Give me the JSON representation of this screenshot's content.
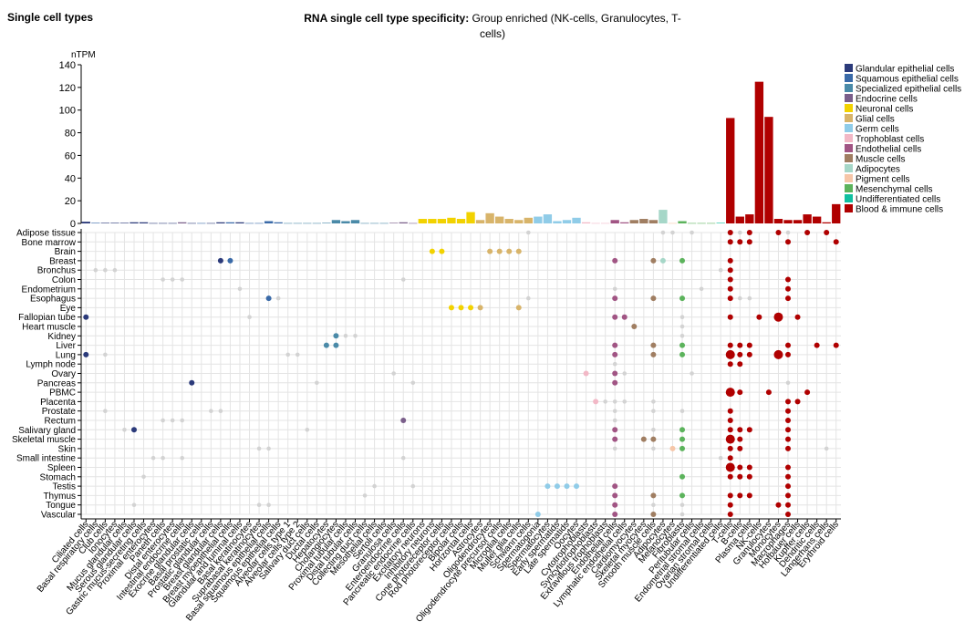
{
  "page": {
    "section_title": "Single cell types",
    "title_label": "RNA single cell type specificity:",
    "title_value": "Group enriched (NK-cells, Granulocytes, T-cells)"
  },
  "chart_data": {
    "type": "bar",
    "ylabel": "nTPM",
    "ylim": [
      0,
      140
    ],
    "yticks": [
      0,
      20,
      40,
      60,
      80,
      100,
      120,
      140
    ],
    "grid": true,
    "legend_position": "right",
    "groups": [
      {
        "name": "Glandular epithelial cells",
        "color": "#2b3a7a"
      },
      {
        "name": "Squamous epithelial cells",
        "color": "#3a6aa8"
      },
      {
        "name": "Specialized epithelial cells",
        "color": "#4a8aa8"
      },
      {
        "name": "Endocrine cells",
        "color": "#7a5e8a"
      },
      {
        "name": "Neuronal cells",
        "color": "#f2d200"
      },
      {
        "name": "Glial cells",
        "color": "#d8b46a"
      },
      {
        "name": "Germ cells",
        "color": "#90cce8"
      },
      {
        "name": "Trophoblast cells",
        "color": "#f2b8c6"
      },
      {
        "name": "Endothelial cells",
        "color": "#a15584"
      },
      {
        "name": "Muscle cells",
        "color": "#a07e62"
      },
      {
        "name": "Adipocytes",
        "color": "#a6d7c8"
      },
      {
        "name": "Pigment cells",
        "color": "#f6c6a8"
      },
      {
        "name": "Mesenchymal cells",
        "color": "#5cb35c"
      },
      {
        "name": "Undifferentiated cells",
        "color": "#10c0a0"
      },
      {
        "name": "Blood & immune cells",
        "color": "#b00000"
      }
    ],
    "categories": [
      "Ciliated cells",
      "Basal respiratory cells",
      "Club cells",
      "Ionocytes",
      "Mucus glandular cells",
      "Serous glandular cells",
      "Gastric mucus-secreting cells",
      "Proximal enterocytes",
      "Paneth cells",
      "Distal enterocytes",
      "Intestinal endocrine cells",
      "Exocrine glandular cells",
      "Basal prostatic cells",
      "Prostatic glandular cells",
      "Breast glandular cells",
      "Breast myoepithelial cells",
      "Glandular and luminal cells",
      "Basal keratinocytes",
      "Suprabasal keratinocytes",
      "Basal squamous epithelial cells",
      "Squamous epithelial cells",
      "Alveolar cells type 1",
      "Alveolar cells type 2",
      "Salivary duct cells",
      "Ductal cells",
      "Hepatocytes",
      "Cholangiocytes",
      "Proximal tubular cells",
      "Distal tubular cells",
      "Collecting duct cells",
      "Mesothelial cells",
      "Sertoli cells",
      "Granulosa cells",
      "Enteroendocrine cells",
      "Pancreatic endocrine cells",
      "Excitatory neurons",
      "Inhibitory neurons",
      "Cone photoreceptor cells",
      "Rod photoreceptor cells",
      "Bipolar cells",
      "Horizontal cells",
      "Astrocytes",
      "Oligodendrocytes",
      "Oligodendrocyte precursor cells",
      "Microglial cells",
      "Muller glia cells",
      "Schwann cells",
      "Spermatogonia",
      "Spermatocytes",
      "Early spermatids",
      "Late spermatids",
      "Oocytes",
      "Cytotrophoblasts",
      "Syncytiotrophoblasts",
      "Extravillous trophoblasts",
      "Endothelial cells",
      "Lymphatic endothelial cells",
      "Cardiomyocytes",
      "Skeletal myocytes",
      "Smooth muscle cells",
      "Adipocytes",
      "Melanocytes",
      "Fibroblasts",
      "Peritubular cells",
      "Endometrial stromal cells",
      "Ovarian stromal cells",
      "Undifferentiated cells",
      "T-cells",
      "B-cells",
      "Plasma cells",
      "NK-cells",
      "Granulocytes",
      "Monocytes",
      "Macrophages",
      "Hofbauer cells",
      "Kupffer cells",
      "Dendritic cells",
      "Langerhans cells",
      "Erythroid cells"
    ],
    "category_groups": [
      0,
      1,
      0,
      0,
      0,
      0,
      0,
      0,
      0,
      0,
      3,
      0,
      1,
      0,
      0,
      1,
      0,
      1,
      1,
      1,
      1,
      2,
      2,
      2,
      2,
      2,
      2,
      2,
      2,
      2,
      2,
      2,
      3,
      3,
      3,
      4,
      4,
      4,
      4,
      4,
      4,
      5,
      5,
      5,
      5,
      5,
      5,
      6,
      6,
      6,
      6,
      6,
      7,
      7,
      7,
      8,
      8,
      9,
      9,
      9,
      10,
      11,
      12,
      12,
      12,
      12,
      13,
      14,
      14,
      14,
      14,
      14,
      14,
      14,
      14,
      14,
      14,
      14,
      14
    ],
    "values": [
      1.5,
      0.5,
      0.5,
      0.5,
      0.5,
      1,
      1,
      0.3,
      0.3,
      0.3,
      1,
      0.3,
      0.3,
      0.3,
      1,
      1,
      1,
      0.3,
      0.3,
      2,
      1,
      0.3,
      0.3,
      0.3,
      0.3,
      0.5,
      3,
      2,
      3,
      0.3,
      0.3,
      0.3,
      0.5,
      1,
      0.3,
      4,
      4,
      4,
      5,
      4,
      10,
      3,
      9,
      6,
      4,
      3,
      5,
      6,
      8,
      2,
      3,
      5,
      1,
      0.3,
      0.3,
      3,
      1,
      3,
      4,
      3,
      12,
      0.3,
      2,
      0.3,
      0.3,
      0.3,
      0.5,
      93,
      6,
      8,
      125,
      94,
      4,
      3,
      3,
      8,
      6,
      1,
      17
    ],
    "tissues": [
      "Adipose tissue",
      "Bone marrow",
      "Brain",
      "Breast",
      "Bronchus",
      "Colon",
      "Endometrium",
      "Esophagus",
      "Eye",
      "Fallopian tube",
      "Heart muscle",
      "Kidney",
      "Liver",
      "Lung",
      "Lymph node",
      "Ovary",
      "Pancreas",
      "PBMC",
      "Placenta",
      "Prostate",
      "Rectum",
      "Salivary gland",
      "Skeletal muscle",
      "Skin",
      "Small intestine",
      "Spleen",
      "Stomach",
      "Testis",
      "Thymus",
      "Tongue",
      "Vascular"
    ],
    "dots": [
      [
        0,
        46,
        1
      ],
      [
        0,
        60,
        1
      ],
      [
        0,
        61,
        1
      ],
      [
        0,
        63,
        1
      ],
      [
        0,
        67,
        2
      ],
      [
        0,
        68,
        1
      ],
      [
        0,
        69,
        2
      ],
      [
        0,
        72,
        2
      ],
      [
        0,
        73,
        1
      ],
      [
        0,
        75,
        2
      ],
      [
        0,
        77,
        2
      ],
      [
        1,
        67,
        4
      ],
      [
        1,
        68,
        2
      ],
      [
        1,
        69,
        2
      ],
      [
        1,
        73,
        2
      ],
      [
        1,
        78,
        2
      ],
      [
        2,
        36,
        2
      ],
      [
        2,
        37,
        2
      ],
      [
        2,
        42,
        2
      ],
      [
        2,
        43,
        2
      ],
      [
        2,
        44,
        2
      ],
      [
        2,
        45,
        2
      ],
      [
        3,
        14,
        2
      ],
      [
        3,
        15,
        2
      ],
      [
        3,
        55,
        2
      ],
      [
        3,
        59,
        2
      ],
      [
        3,
        60,
        2
      ],
      [
        3,
        62,
        2
      ],
      [
        3,
        67,
        2
      ],
      [
        4,
        1,
        1
      ],
      [
        4,
        2,
        1
      ],
      [
        4,
        3,
        1
      ],
      [
        4,
        66,
        1
      ],
      [
        4,
        67,
        2
      ],
      [
        5,
        8,
        1
      ],
      [
        5,
        9,
        1
      ],
      [
        5,
        10,
        1
      ],
      [
        5,
        33,
        1
      ],
      [
        5,
        67,
        2
      ],
      [
        5,
        73,
        2
      ],
      [
        6,
        16,
        1
      ],
      [
        6,
        55,
        1
      ],
      [
        6,
        64,
        1
      ],
      [
        6,
        67,
        2
      ],
      [
        6,
        73,
        2
      ],
      [
        7,
        19,
        2
      ],
      [
        7,
        20,
        1
      ],
      [
        7,
        46,
        1
      ],
      [
        7,
        55,
        2
      ],
      [
        7,
        59,
        2
      ],
      [
        7,
        62,
        2
      ],
      [
        7,
        67,
        2
      ],
      [
        7,
        68,
        1
      ],
      [
        7,
        69,
        1
      ],
      [
        7,
        73,
        2
      ],
      [
        8,
        38,
        2
      ],
      [
        8,
        39,
        2
      ],
      [
        8,
        40,
        2
      ],
      [
        8,
        41,
        2
      ],
      [
        8,
        45,
        2
      ],
      [
        9,
        0,
        2
      ],
      [
        9,
        17,
        1
      ],
      [
        9,
        55,
        2
      ],
      [
        9,
        56,
        2
      ],
      [
        9,
        62,
        1
      ],
      [
        9,
        67,
        2
      ],
      [
        9,
        70,
        2
      ],
      [
        9,
        72,
        3
      ],
      [
        9,
        74,
        2
      ],
      [
        10,
        57,
        2
      ],
      [
        10,
        62,
        1
      ],
      [
        11,
        26,
        2
      ],
      [
        11,
        27,
        1
      ],
      [
        11,
        28,
        1
      ],
      [
        11,
        62,
        1
      ],
      [
        12,
        25,
        2
      ],
      [
        12,
        26,
        2
      ],
      [
        12,
        55,
        2
      ],
      [
        12,
        59,
        2
      ],
      [
        12,
        62,
        2
      ],
      [
        12,
        67,
        4
      ],
      [
        12,
        68,
        2
      ],
      [
        12,
        69,
        2
      ],
      [
        12,
        73,
        2
      ],
      [
        12,
        76,
        2
      ],
      [
        12,
        78,
        2
      ],
      [
        13,
        0,
        2
      ],
      [
        13,
        2,
        1
      ],
      [
        13,
        21,
        1
      ],
      [
        13,
        22,
        1
      ],
      [
        13,
        55,
        2
      ],
      [
        13,
        59,
        2
      ],
      [
        13,
        62,
        2
      ],
      [
        13,
        67,
        3
      ],
      [
        13,
        68,
        2
      ],
      [
        13,
        69,
        2
      ],
      [
        13,
        72,
        3
      ],
      [
        13,
        73,
        2
      ],
      [
        14,
        55,
        1
      ],
      [
        14,
        67,
        2
      ],
      [
        14,
        68,
        2
      ],
      [
        15,
        32,
        1
      ],
      [
        15,
        52,
        2
      ],
      [
        15,
        55,
        2
      ],
      [
        15,
        56,
        1
      ],
      [
        15,
        63,
        1
      ],
      [
        16,
        11,
        2
      ],
      [
        16,
        24,
        1
      ],
      [
        16,
        34,
        1
      ],
      [
        16,
        55,
        2
      ],
      [
        16,
        73,
        1
      ],
      [
        17,
        67,
        3
      ],
      [
        17,
        68,
        2
      ],
      [
        17,
        71,
        2
      ],
      [
        17,
        75,
        2
      ],
      [
        18,
        53,
        2
      ],
      [
        18,
        54,
        1
      ],
      [
        18,
        55,
        1
      ],
      [
        18,
        56,
        1
      ],
      [
        18,
        59,
        1
      ],
      [
        18,
        73,
        2
      ],
      [
        18,
        74,
        2
      ],
      [
        19,
        2,
        1
      ],
      [
        19,
        13,
        1
      ],
      [
        19,
        14,
        1
      ],
      [
        19,
        55,
        1
      ],
      [
        19,
        59,
        1
      ],
      [
        19,
        62,
        1
      ],
      [
        19,
        67,
        2
      ],
      [
        19,
        73,
        2
      ],
      [
        20,
        8,
        1
      ],
      [
        20,
        9,
        1
      ],
      [
        20,
        10,
        1
      ],
      [
        20,
        33,
        2
      ],
      [
        20,
        55,
        1
      ],
      [
        20,
        67,
        2
      ],
      [
        20,
        73,
        2
      ],
      [
        21,
        4,
        1
      ],
      [
        21,
        5,
        2
      ],
      [
        21,
        23,
        1
      ],
      [
        21,
        55,
        2
      ],
      [
        21,
        59,
        1
      ],
      [
        21,
        62,
        2
      ],
      [
        21,
        67,
        2
      ],
      [
        21,
        68,
        2
      ],
      [
        21,
        69,
        2
      ],
      [
        21,
        73,
        2
      ],
      [
        22,
        55,
        2
      ],
      [
        22,
        58,
        2
      ],
      [
        22,
        59,
        2
      ],
      [
        22,
        62,
        2
      ],
      [
        22,
        67,
        3
      ],
      [
        22,
        68,
        2
      ],
      [
        22,
        73,
        2
      ],
      [
        23,
        18,
        1
      ],
      [
        23,
        19,
        1
      ],
      [
        23,
        55,
        1
      ],
      [
        23,
        59,
        1
      ],
      [
        23,
        61,
        2
      ],
      [
        23,
        62,
        2
      ],
      [
        23,
        67,
        2
      ],
      [
        23,
        68,
        2
      ],
      [
        23,
        73,
        2
      ],
      [
        23,
        77,
        1
      ],
      [
        24,
        7,
        1
      ],
      [
        24,
        8,
        1
      ],
      [
        24,
        10,
        1
      ],
      [
        24,
        33,
        1
      ],
      [
        24,
        66,
        1
      ],
      [
        24,
        67,
        2
      ],
      [
        25,
        67,
        3
      ],
      [
        25,
        68,
        2
      ],
      [
        25,
        69,
        2
      ],
      [
        25,
        73,
        2
      ],
      [
        26,
        6,
        1
      ],
      [
        26,
        62,
        2
      ],
      [
        26,
        67,
        2
      ],
      [
        26,
        68,
        2
      ],
      [
        26,
        69,
        2
      ],
      [
        26,
        73,
        2
      ],
      [
        27,
        30,
        1
      ],
      [
        27,
        34,
        1
      ],
      [
        27,
        48,
        2
      ],
      [
        27,
        49,
        2
      ],
      [
        27,
        50,
        2
      ],
      [
        27,
        51,
        2
      ],
      [
        27,
        55,
        2
      ],
      [
        27,
        73,
        2
      ],
      [
        28,
        29,
        1
      ],
      [
        28,
        55,
        2
      ],
      [
        28,
        59,
        2
      ],
      [
        28,
        62,
        2
      ],
      [
        28,
        67,
        2
      ],
      [
        28,
        68,
        2
      ],
      [
        28,
        69,
        2
      ],
      [
        28,
        73,
        2
      ],
      [
        29,
        5,
        1
      ],
      [
        29,
        18,
        1
      ],
      [
        29,
        19,
        1
      ],
      [
        29,
        55,
        2
      ],
      [
        29,
        59,
        1
      ],
      [
        29,
        62,
        1
      ],
      [
        29,
        67,
        2
      ],
      [
        29,
        72,
        2
      ],
      [
        29,
        73,
        2
      ],
      [
        30,
        47,
        2
      ],
      [
        30,
        55,
        2
      ],
      [
        30,
        59,
        2
      ],
      [
        30,
        62,
        1
      ],
      [
        30,
        67,
        2
      ],
      [
        30,
        73,
        2
      ]
    ],
    "dot_muted_color": "#d3d3d3"
  }
}
